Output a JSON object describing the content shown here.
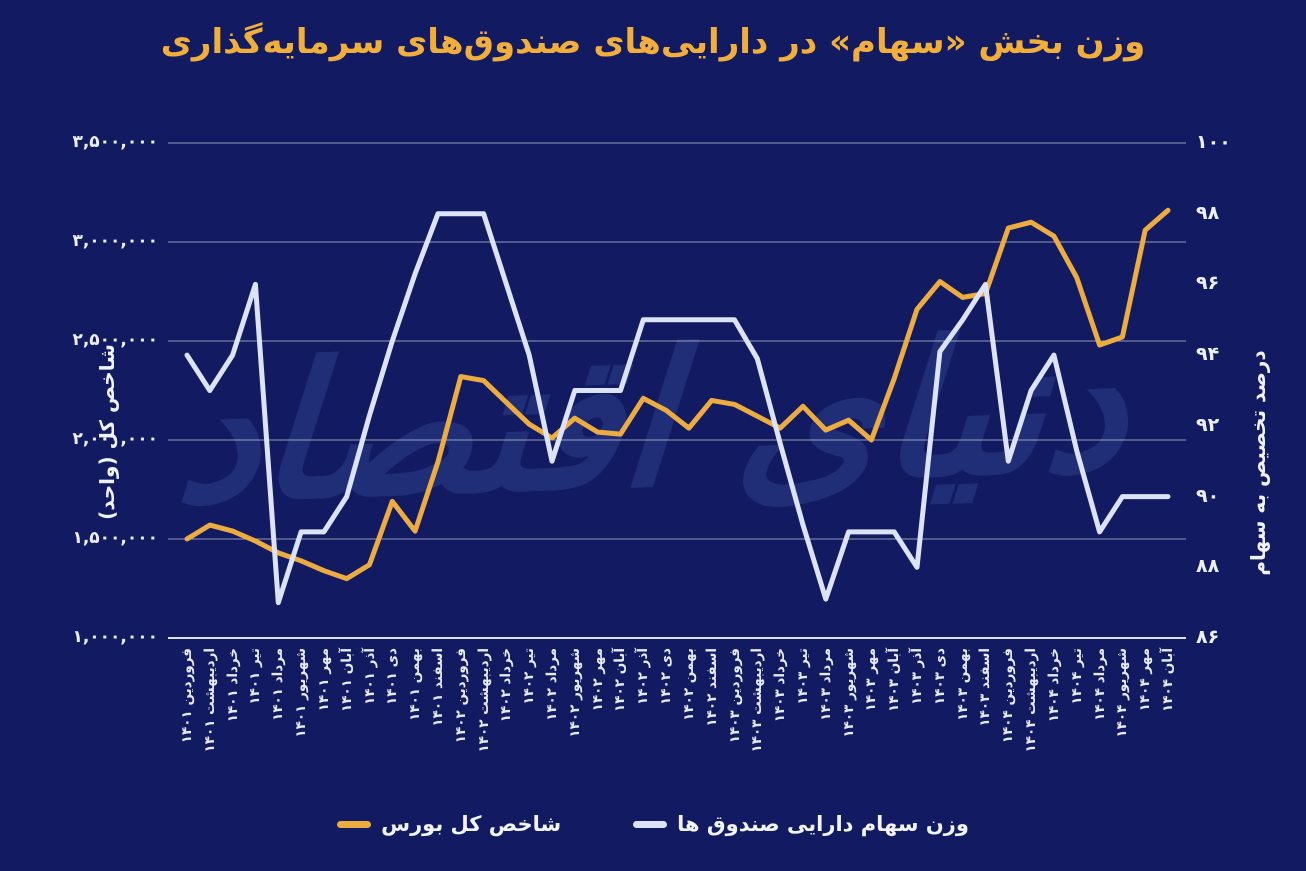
{
  "title": "وزن بخش «سهام» در دارایی‌های صندوق‌های سرمایه‌گذاری",
  "watermark": "دنیای اقتصاد",
  "colors": {
    "background": "#121B61",
    "title": "#F1AE3B",
    "grid": "#E9EDF9",
    "text": "#EDEFF8",
    "index_line": "#EDAC3F",
    "weight_line": "#DCE3F6",
    "watermark": "#5572CC"
  },
  "left_axis": {
    "title": "شاخص کل (واحد)",
    "tick_labels": [
      "۳,۵۰۰,۰۰۰",
      "۳,۰۰۰,۰۰۰",
      "۲,۵۰۰,۰۰۰",
      "۲,۰۰۰,۰۰۰",
      "۱,۵۰۰,۰۰۰",
      "۱,۰۰۰,۰۰۰"
    ],
    "tick_values": [
      3500000,
      3000000,
      2500000,
      2000000,
      1500000,
      1000000
    ]
  },
  "right_axis": {
    "title": "درصد تخصیص به سهام",
    "tick_labels": [
      "۱۰۰",
      "۹۸",
      "۹۶",
      "۹۴",
      "۹۲",
      "۹۰",
      "۸۸",
      "۸۶"
    ],
    "tick_values": [
      100,
      98,
      96,
      94,
      92,
      90,
      88,
      86
    ]
  },
  "legend": {
    "items": [
      {
        "label": "وزن سهام دارایی صندوق ها",
        "color": "#DCE3F6"
      },
      {
        "label": "شاخص کل بورس",
        "color": "#EDAC3F"
      }
    ]
  },
  "chart_data": {
    "type": "line",
    "categories": [
      "فروردین ۱۴۰۱",
      "اردیبهشت ۱۴۰۱",
      "خرداد ۱۴۰۱",
      "تیر ۱۴۰۱",
      "مرداد ۱۴۰۱",
      "شهریور ۱۴۰۱",
      "مهر ۱۴۰۱",
      "آبان ۱۴۰۱",
      "آذر ۱۴۰۱",
      "دی ۱۴۰۱",
      "بهمن ۱۴۰۱",
      "اسفند ۱۴۰۱",
      "فروردین ۱۴۰۲",
      "اردیبهشت ۱۴۰۲",
      "خرداد ۱۴۰۲",
      "تیر ۱۴۰۲",
      "مرداد ۱۴۰۲",
      "شهریور ۱۴۰۲",
      "مهر ۱۴۰۲",
      "آبان ۱۴۰۲",
      "آذر ۱۴۰۲",
      "دی ۱۴۰۲",
      "بهمن ۱۴۰۲",
      "اسفند ۱۴۰۲",
      "فروردین ۱۴۰۳",
      "اردیبهشت ۱۴۰۳",
      "خرداد ۱۴۰۳",
      "تیر ۱۴۰۳",
      "مرداد ۱۴۰۳",
      "شهریور ۱۴۰۳",
      "مهر ۱۴۰۳",
      "آبان ۱۴۰۳",
      "آذر ۱۴۰۳",
      "دی ۱۴۰۳",
      "بهمن ۱۴۰۳",
      "اسفند ۱۴۰۳",
      "فروردین ۱۴۰۴",
      "اردیبهشت ۱۴۰۴",
      "خرداد ۱۴۰۴",
      "تیر ۱۴۰۴",
      "مرداد ۱۴۰۴",
      "شهریور ۱۴۰۴",
      "مهر ۱۴۰۴",
      "آبان ۱۴۰۴"
    ],
    "series": [
      {
        "name": "شاخص کل بورس",
        "axis": "left",
        "color": "#EDAC3F",
        "values": [
          1500000,
          1570000,
          1540000,
          1490000,
          1430000,
          1390000,
          1340000,
          1300000,
          1370000,
          1690000,
          1540000,
          1890000,
          2320000,
          2300000,
          2190000,
          2080000,
          2010000,
          2110000,
          2040000,
          2030000,
          2210000,
          2150000,
          2060000,
          2200000,
          2180000,
          2120000,
          2060000,
          2170000,
          2050000,
          2100000,
          2000000,
          2310000,
          2660000,
          2800000,
          2720000,
          2740000,
          3070000,
          3100000,
          3030000,
          2820000,
          2480000,
          2520000,
          3060000,
          3160000
        ]
      },
      {
        "name": "وزن سهام دارایی صندوق ها",
        "axis": "right",
        "color": "#DCE3F6",
        "values": [
          94,
          93,
          94,
          96,
          87,
          89,
          89,
          90,
          92.3,
          94.4,
          96.3,
          98,
          98,
          98,
          96,
          94,
          91,
          93,
          93,
          93,
          95,
          95,
          95,
          95,
          95,
          93.9,
          91.5,
          89.2,
          87.1,
          89,
          89,
          89,
          88,
          94.1,
          95,
          96,
          91,
          93,
          94,
          91.3,
          89,
          90,
          90,
          90
        ]
      }
    ],
    "left_ylim": [
      1000000,
      3500000
    ],
    "right_ylim": [
      86,
      100
    ],
    "grid": true,
    "legend_position": "bottom"
  }
}
